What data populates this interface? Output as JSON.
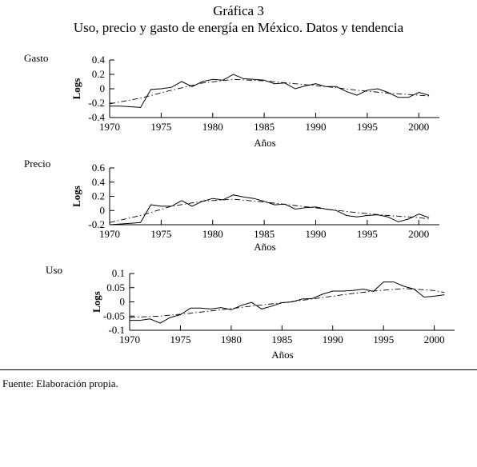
{
  "figure": {
    "title": "Gráfica  3",
    "subtitle": "Uso, precio y gasto de energía en México. Datos y tendencia",
    "source": "Fuente: Elaboración propia."
  },
  "chart_data": [
    {
      "type": "line",
      "panel_label": "Gasto",
      "ylabel": "Logs",
      "xlabel": "Años",
      "xlim": [
        1970,
        2002
      ],
      "ylim": [
        -0.4,
        0.4
      ],
      "xticks": [
        1970,
        1975,
        1980,
        1985,
        1990,
        1995,
        2000
      ],
      "yticks": [
        0.4,
        0.2,
        0,
        -0.2,
        -0.4
      ],
      "ytick_labels": [
        "0.4",
        "0.2",
        "0",
        "-0.2",
        "-0.4"
      ],
      "series": [
        {
          "style": "solid",
          "x": [
            1970,
            1971,
            1972,
            1973,
            1974,
            1975,
            1976,
            1977,
            1978,
            1979,
            1980,
            1981,
            1982,
            1983,
            1984,
            1985,
            1986,
            1987,
            1988,
            1989,
            1990,
            1991,
            1992,
            1993,
            1994,
            1995,
            1996,
            1997,
            1998,
            1999,
            2000,
            2001
          ],
          "y": [
            -0.24,
            -0.24,
            -0.25,
            -0.26,
            -0.01,
            0.0,
            0.02,
            0.1,
            0.03,
            0.1,
            0.13,
            0.12,
            0.2,
            0.14,
            0.13,
            0.12,
            0.07,
            0.08,
            0.0,
            0.04,
            0.07,
            0.03,
            0.03,
            -0.04,
            -0.09,
            -0.02,
            0.0,
            -0.05,
            -0.12,
            -0.12,
            -0.05,
            -0.09
          ]
        },
        {
          "style": "dash-dot",
          "x": [
            1970,
            1973,
            1976,
            1979,
            1982,
            1985,
            1988,
            1991,
            1994,
            1997,
            2000,
            2001
          ],
          "y": [
            -0.21,
            -0.13,
            -0.02,
            0.08,
            0.13,
            0.11,
            0.07,
            0.03,
            -0.02,
            -0.06,
            -0.09,
            -0.1
          ]
        }
      ]
    },
    {
      "type": "line",
      "panel_label": "Precio",
      "ylabel": "Logs",
      "xlabel": "Años",
      "xlim": [
        1970,
        2002
      ],
      "ylim": [
        -0.2,
        0.6
      ],
      "xticks": [
        1970,
        1975,
        1980,
        1985,
        1990,
        1995,
        2000
      ],
      "yticks": [
        0.6,
        0.4,
        0.2,
        0,
        -0.2
      ],
      "ytick_labels": [
        "0.6",
        "0.4",
        "0.2",
        "0",
        "-0.2"
      ],
      "series": [
        {
          "style": "solid",
          "x": [
            1970,
            1971,
            1972,
            1973,
            1974,
            1975,
            1976,
            1977,
            1978,
            1979,
            1980,
            1981,
            1982,
            1983,
            1984,
            1985,
            1986,
            1987,
            1988,
            1989,
            1990,
            1991,
            1992,
            1993,
            1994,
            1995,
            1996,
            1997,
            1998,
            1999,
            2000,
            2001
          ],
          "y": [
            -0.2,
            -0.19,
            -0.18,
            -0.17,
            0.08,
            0.06,
            0.06,
            0.14,
            0.06,
            0.13,
            0.17,
            0.15,
            0.22,
            0.19,
            0.17,
            0.13,
            0.08,
            0.09,
            0.02,
            0.04,
            0.05,
            0.02,
            0.0,
            -0.07,
            -0.09,
            -0.07,
            -0.06,
            -0.09,
            -0.16,
            -0.12,
            -0.05,
            -0.1
          ]
        },
        {
          "style": "dash-dot",
          "x": [
            1970,
            1973,
            1976,
            1979,
            1982,
            1985,
            1988,
            1991,
            1994,
            1997,
            2000,
            2001
          ],
          "y": [
            -0.17,
            -0.07,
            0.06,
            0.13,
            0.16,
            0.12,
            0.07,
            0.02,
            -0.03,
            -0.07,
            -0.1,
            -0.12
          ]
        }
      ]
    },
    {
      "type": "line",
      "panel_label": "Uso",
      "ylabel": "Logs",
      "xlabel": "Años",
      "xlim": [
        1970,
        2002
      ],
      "ylim": [
        -0.1,
        0.1
      ],
      "xticks": [
        1970,
        1975,
        1980,
        1985,
        1990,
        1995,
        2000
      ],
      "yticks": [
        0.1,
        0.05,
        0,
        -0.05,
        -0.1
      ],
      "ytick_labels": [
        "0.1",
        "0.05",
        "0",
        "-0.05",
        "-0.1"
      ],
      "series": [
        {
          "style": "solid",
          "x": [
            1970,
            1971,
            1972,
            1973,
            1974,
            1975,
            1976,
            1977,
            1978,
            1979,
            1980,
            1981,
            1982,
            1983,
            1984,
            1985,
            1986,
            1987,
            1988,
            1989,
            1990,
            1991,
            1992,
            1993,
            1994,
            1995,
            1996,
            1997,
            1998,
            1999,
            2000,
            2001
          ],
          "y": [
            -0.065,
            -0.065,
            -0.06,
            -0.075,
            -0.055,
            -0.045,
            -0.022,
            -0.022,
            -0.025,
            -0.02,
            -0.028,
            -0.012,
            -0.002,
            -0.025,
            -0.015,
            -0.003,
            0.0,
            0.01,
            0.012,
            0.027,
            0.038,
            0.038,
            0.04,
            0.045,
            0.037,
            0.07,
            0.07,
            0.055,
            0.045,
            0.017,
            0.02,
            0.025
          ]
        },
        {
          "style": "dash-dot",
          "x": [
            1970,
            1973,
            1976,
            1979,
            1982,
            1985,
            1988,
            1991,
            1994,
            1997,
            2000,
            2001
          ],
          "y": [
            -0.055,
            -0.05,
            -0.04,
            -0.028,
            -0.015,
            -0.003,
            0.01,
            0.025,
            0.038,
            0.047,
            0.04,
            0.033
          ]
        }
      ]
    }
  ]
}
